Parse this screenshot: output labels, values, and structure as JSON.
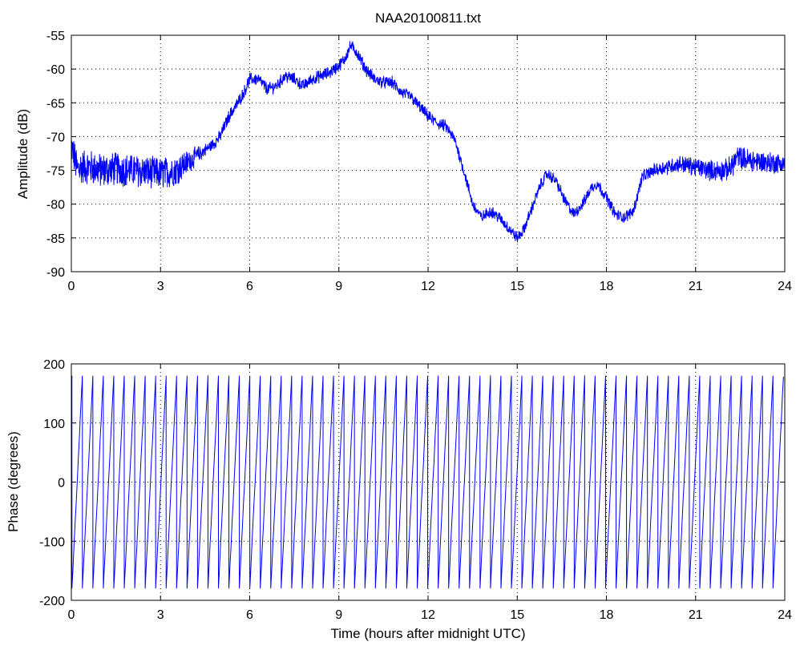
{
  "figure": {
    "title": "NAA20100811.txt",
    "series_color": "#0000ff"
  },
  "chart_data": [
    {
      "type": "line",
      "id": "amplitude",
      "title": "NAA20100811.txt",
      "xlabel": "",
      "ylabel": "Amplitude (dB)",
      "xlim": [
        0,
        24
      ],
      "ylim": [
        -90,
        -55
      ],
      "xticks": [
        0,
        3,
        6,
        9,
        12,
        15,
        18,
        21,
        24
      ],
      "yticks": [
        -90,
        -85,
        -80,
        -75,
        -70,
        -65,
        -60,
        -55
      ],
      "grid": true,
      "noise": [
        [
          0,
          2.5
        ],
        [
          3.5,
          2.2
        ],
        [
          4.5,
          0.8
        ],
        [
          19,
          0.7
        ],
        [
          22.3,
          1.6
        ],
        [
          24,
          1.4
        ]
      ],
      "x": [
        0,
        0.1,
        0.2,
        0.3,
        0.6,
        1.0,
        1.5,
        2.0,
        2.5,
        3.0,
        3.5,
        4.0,
        4.5,
        4.8,
        5.0,
        5.3,
        5.6,
        5.8,
        6.0,
        6.3,
        6.6,
        6.9,
        7.2,
        7.5,
        7.8,
        8.1,
        8.4,
        8.7,
        9.0,
        9.2,
        9.4,
        9.6,
        9.9,
        10.2,
        10.5,
        10.8,
        11.1,
        11.4,
        11.7,
        12.0,
        12.3,
        12.6,
        12.9,
        13.2,
        13.5,
        13.8,
        14.1,
        14.4,
        14.7,
        15.0,
        15.2,
        15.5,
        15.8,
        16.0,
        16.3,
        16.6,
        16.9,
        17.2,
        17.5,
        17.7,
        18.0,
        18.3,
        18.6,
        18.9,
        19.0,
        19.2,
        19.6,
        20.0,
        20.5,
        21.0,
        21.5,
        22.0,
        22.2,
        22.4,
        22.8,
        23.3,
        24.0
      ],
      "y": [
        -71.5,
        -73.0,
        -75.0,
        -74.5,
        -74.5,
        -75.0,
        -74.8,
        -75.0,
        -75.2,
        -75.5,
        -75.0,
        -73.5,
        -72.0,
        -71.0,
        -70.0,
        -67.0,
        -65.0,
        -63.5,
        -61.5,
        -61.5,
        -63.0,
        -62.5,
        -61.0,
        -61.5,
        -62.5,
        -61.5,
        -61.0,
        -60.5,
        -59.5,
        -58.5,
        -56.5,
        -57.5,
        -60.0,
        -61.5,
        -62.0,
        -62.0,
        -63.5,
        -64.0,
        -65.5,
        -67.0,
        -68.0,
        -68.5,
        -70.5,
        -75.0,
        -80.0,
        -82.0,
        -81.0,
        -82.0,
        -83.5,
        -85.0,
        -84.0,
        -80.5,
        -77.0,
        -75.5,
        -76.5,
        -79.5,
        -81.5,
        -80.0,
        -77.5,
        -77.0,
        -79.0,
        -81.5,
        -82.0,
        -81.0,
        -79.5,
        -76.0,
        -75.0,
        -74.5,
        -74.0,
        -74.5,
        -75.0,
        -75.0,
        -74.5,
        -73.0,
        -73.5,
        -73.8,
        -74.0
      ]
    },
    {
      "type": "line",
      "id": "phase",
      "title": "",
      "xlabel": "Time (hours after midnight UTC)",
      "ylabel": "Phase (degrees)",
      "xlim": [
        0,
        24
      ],
      "ylim": [
        -200,
        200
      ],
      "xticks": [
        0,
        3,
        6,
        9,
        12,
        15,
        18,
        21,
        24
      ],
      "yticks": [
        -200,
        -100,
        0,
        100,
        200
      ],
      "grid": true,
      "wrap_range": [
        -180,
        180
      ],
      "cycle_period_hours": 0.352,
      "cycle_start_hour": 0.02,
      "cycle_count": 68
    }
  ]
}
